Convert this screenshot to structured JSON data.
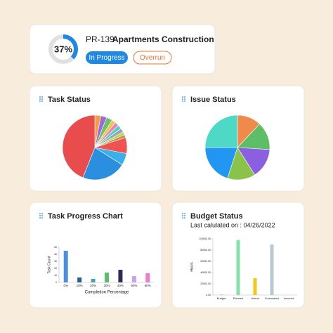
{
  "header": {
    "progress": {
      "value": 37,
      "label": "37%"
    },
    "code": "PR-139",
    "title": "Apartments Construction",
    "status": "In Progress",
    "flag": "Overrun"
  },
  "chart_data": [
    {
      "type": "pie",
      "title": "Task Status",
      "values": [
        3,
        3,
        3,
        2,
        2,
        2,
        2,
        1.5,
        1.5,
        8,
        6,
        22,
        44
      ],
      "colors": [
        "#f39c4a",
        "#9b6ad6",
        "#6cc070",
        "#f4c542",
        "#ef7fb5",
        "#4fd0c9",
        "#9aa5b1",
        "#b8d84a",
        "#c98a5a",
        "#ef5350",
        "#3ab0e8",
        "#2b8fe0",
        "#e84c4c"
      ]
    },
    {
      "type": "pie",
      "title": "Issue Status",
      "values": [
        12,
        14,
        15,
        14,
        20,
        25
      ],
      "colors": [
        "#f08a4b",
        "#5cbf68",
        "#8a5fe0",
        "#8bc34a",
        "#2196f3",
        "#4dd9c6"
      ]
    },
    {
      "type": "bar",
      "title": "Task Progress Chart",
      "xlabel": "Completion Percentage",
      "ylabel": "Task Count",
      "categories": [
        "0%",
        "10%",
        "20%",
        "30%",
        "40%",
        "50%",
        "60%"
      ],
      "values": [
        45,
        7,
        5,
        14,
        18,
        9,
        13
      ],
      "colors": [
        "#4a90e2",
        "#2c5d8f",
        "#4aa0b8",
        "#5cbf68",
        "#2e2a5a",
        "#c7a3e8",
        "#f07ad0"
      ],
      "ylim": [
        0,
        50
      ],
      "yticks": [
        0,
        10,
        20,
        30,
        40,
        50
      ]
    },
    {
      "type": "bar",
      "title": "Budget Status",
      "subtitle": "Last calulated on : 04/26/2022",
      "ylabel": "Hours",
      "categories": [
        "Budget",
        "Planned",
        "Actual",
        "Forecasted",
        "Incurred"
      ],
      "values": [
        500,
        98000,
        30000,
        90000,
        0
      ],
      "colors": [
        "#7a8ea8",
        "#86e0a8",
        "#f5c518",
        "#b8c8d4",
        "#7a8ea8"
      ],
      "ylim": [
        0,
        100000
      ],
      "yticks": [
        {
          "value": 0,
          "label": "0.00"
        },
        {
          "value": 20000,
          "label": "20000.00"
        },
        {
          "value": 40000,
          "label": "40000.00"
        },
        {
          "value": 60000,
          "label": "60000.00"
        },
        {
          "value": 80000,
          "label": "80000.00"
        },
        {
          "value": 100000,
          "label": "100000.00"
        }
      ]
    }
  ]
}
